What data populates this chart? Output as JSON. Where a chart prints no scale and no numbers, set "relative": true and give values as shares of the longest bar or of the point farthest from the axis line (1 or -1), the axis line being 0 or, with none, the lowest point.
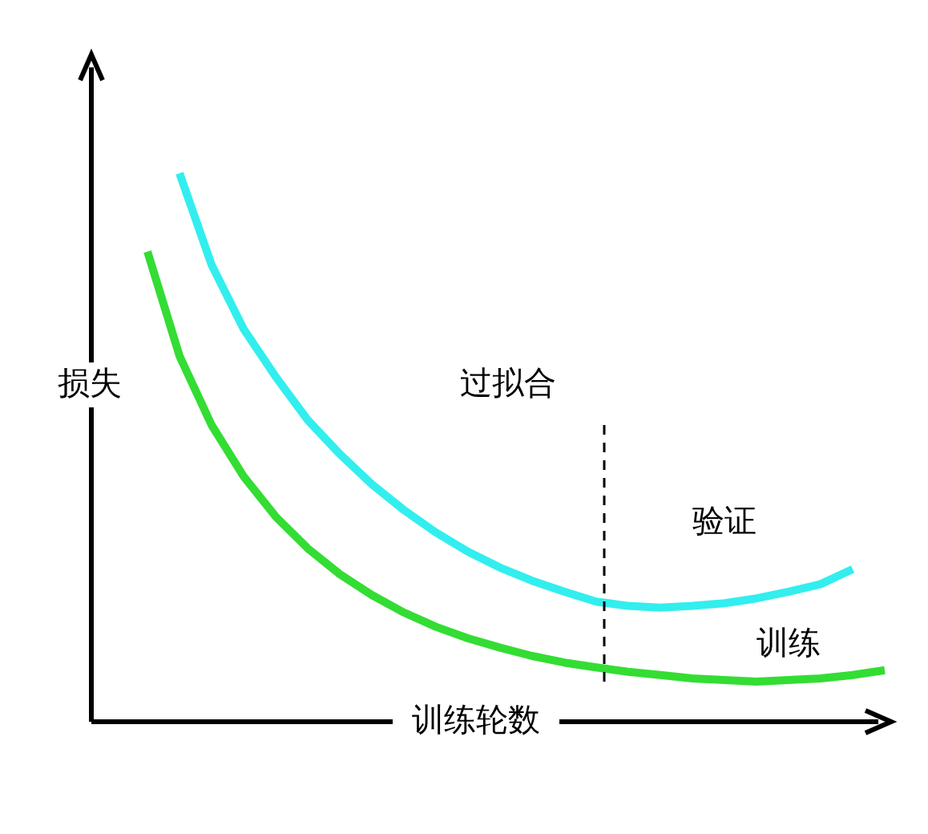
{
  "chart_data": {
    "type": "line",
    "relative": true,
    "xlabel": "训练轮数",
    "ylabel": "损失",
    "categories": [
      null,
      null,
      null,
      null,
      null,
      null,
      null,
      null,
      null,
      null,
      null,
      null,
      null,
      null,
      null,
      null,
      null,
      null,
      null,
      null,
      null,
      null,
      null,
      null
    ],
    "series": [
      {
        "name": "验证",
        "color": "#33eeee",
        "values": [
          null,
          1.0,
          0.833,
          0.716,
          0.629,
          0.55,
          0.488,
          0.433,
          0.386,
          0.345,
          0.31,
          0.281,
          0.257,
          0.237,
          0.219,
          0.211,
          0.208,
          0.211,
          0.216,
          0.225,
          0.237,
          0.251,
          0.278,
          null
        ]
      },
      {
        "name": "训练",
        "color": "#33dd33",
        "values": [
          0.857,
          0.667,
          0.541,
          0.447,
          0.374,
          0.316,
          0.269,
          0.231,
          0.199,
          0.173,
          0.152,
          0.135,
          0.12,
          0.108,
          0.099,
          0.091,
          0.085,
          0.079,
          0.076,
          0.073,
          0.076,
          0.079,
          0.085,
          0.094
        ]
      }
    ],
    "annotations": [
      "过拟合"
    ]
  }
}
